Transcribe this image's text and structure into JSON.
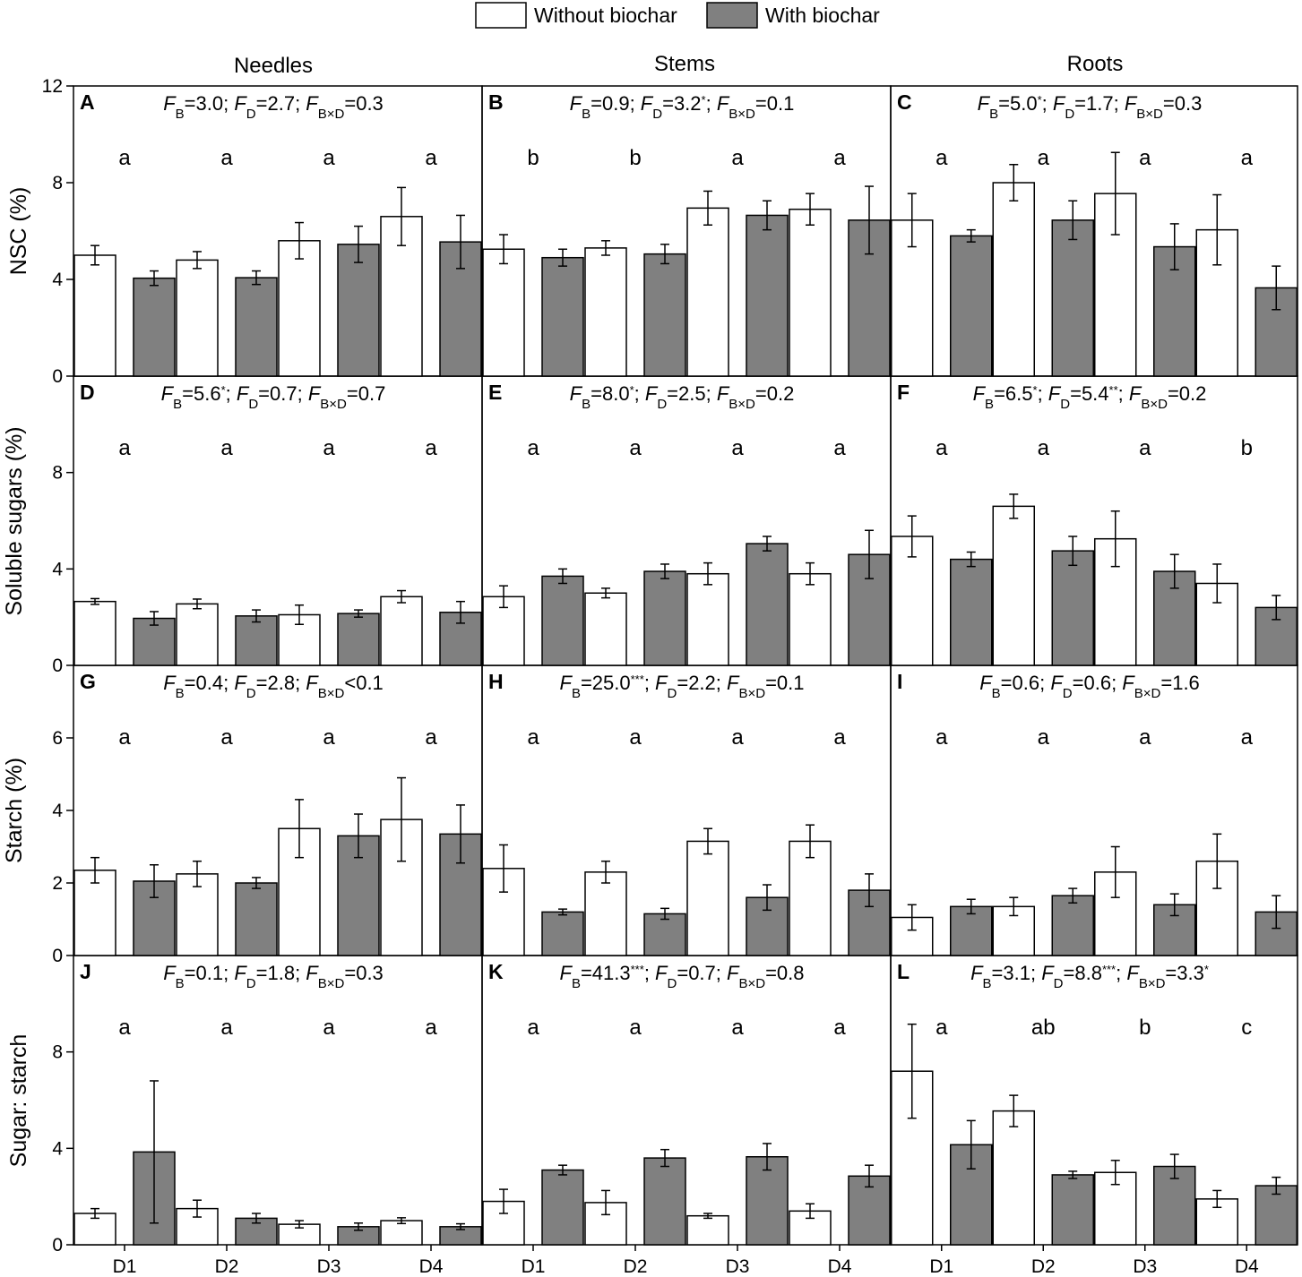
{
  "legend": {
    "items": [
      {
        "label": "Without biochar",
        "color": "#ffffff"
      },
      {
        "label": "With biochar",
        "color": "#808080"
      }
    ]
  },
  "columns": [
    "Needles",
    "Stems",
    "Roots"
  ],
  "row_labels": [
    "NSC (%)",
    "Soluble sugars (%)",
    "Starch (%)",
    "Sugar: starch"
  ],
  "x_categories": [
    "D1",
    "D2",
    "D3",
    "D4"
  ],
  "chart_data": {
    "type": "bar",
    "series": [
      {
        "name": "Without biochar",
        "color": "#ffffff"
      },
      {
        "name": "With biochar",
        "color": "#808080"
      }
    ],
    "categories": [
      "D1",
      "D2",
      "D3",
      "D4"
    ],
    "rows": [
      {
        "ylabel": "NSC (%)",
        "ylim": [
          0,
          12
        ],
        "yticks": [
          "0",
          "4",
          "8",
          "12"
        ],
        "ytick_values": [
          0,
          4,
          8,
          12
        ]
      },
      {
        "ylabel": "Soluble sugars (%)",
        "ylim": [
          0,
          12
        ],
        "yticks": [
          "0",
          "4",
          "8"
        ],
        "ytick_values": [
          0,
          4,
          8
        ]
      },
      {
        "ylabel": "Starch (%)",
        "ylim": [
          0,
          8
        ],
        "yticks": [
          "0",
          "2",
          "4",
          "6"
        ],
        "ytick_values": [
          0,
          2,
          4,
          6
        ]
      },
      {
        "ylabel": "Sugar: starch",
        "ylim": [
          0,
          12
        ],
        "yticks": [
          "0",
          "4",
          "8"
        ],
        "ytick_values": [
          0,
          4,
          8
        ]
      }
    ],
    "panels": [
      {
        "letter": "A",
        "row": 0,
        "col": 0,
        "stats": {
          "fb": "3.0",
          "fb_sig": "",
          "fd": "2.7",
          "fd_sig": "",
          "op": "=",
          "fbd": "0.3",
          "fbd_sig": ""
        },
        "letters": [
          "a",
          "a",
          "a",
          "a"
        ],
        "without": [
          5.0,
          4.8,
          5.6,
          6.6
        ],
        "without_err": [
          0.4,
          0.35,
          0.75,
          1.2
        ],
        "with": [
          4.05,
          4.07,
          5.45,
          5.55
        ],
        "with_err": [
          0.3,
          0.28,
          0.75,
          1.1
        ]
      },
      {
        "letter": "B",
        "row": 0,
        "col": 1,
        "stats": {
          "fb": "0.9",
          "fb_sig": "",
          "fd": "3.2",
          "fd_sig": "*",
          "op": "=",
          "fbd": "0.1",
          "fbd_sig": ""
        },
        "letters": [
          "b",
          "b",
          "a",
          "a"
        ],
        "without": [
          5.25,
          5.3,
          6.95,
          6.9
        ],
        "without_err": [
          0.6,
          0.3,
          0.7,
          0.65
        ],
        "with": [
          4.9,
          5.05,
          6.65,
          6.45
        ],
        "with_err": [
          0.35,
          0.4,
          0.6,
          1.4
        ]
      },
      {
        "letter": "C",
        "row": 0,
        "col": 2,
        "stats": {
          "fb": "5.0",
          "fb_sig": "*",
          "fd": "1.7",
          "fd_sig": "",
          "op": "=",
          "fbd": "0.3",
          "fbd_sig": ""
        },
        "letters": [
          "a",
          "a",
          "a",
          "a"
        ],
        "without": [
          6.45,
          8.0,
          7.55,
          6.05
        ],
        "without_err": [
          1.1,
          0.75,
          1.7,
          1.45
        ],
        "with": [
          5.8,
          6.45,
          5.35,
          3.65
        ],
        "with_err": [
          0.25,
          0.8,
          0.95,
          0.9
        ]
      },
      {
        "letter": "D",
        "row": 1,
        "col": 0,
        "stats": {
          "fb": "5.6",
          "fb_sig": "*",
          "fd": "0.7",
          "fd_sig": "",
          "op": "=",
          "fbd": "0.7",
          "fbd_sig": ""
        },
        "letters": [
          "a",
          "a",
          "a",
          "a"
        ],
        "without": [
          2.65,
          2.55,
          2.1,
          2.85
        ],
        "without_err": [
          0.12,
          0.2,
          0.4,
          0.25
        ],
        "with": [
          1.95,
          2.05,
          2.15,
          2.2
        ],
        "with_err": [
          0.28,
          0.25,
          0.15,
          0.45
        ]
      },
      {
        "letter": "E",
        "row": 1,
        "col": 1,
        "stats": {
          "fb": "8.0",
          "fb_sig": "*",
          "fd": "2.5",
          "fd_sig": "",
          "op": "=",
          "fbd": "0.2",
          "fbd_sig": ""
        },
        "letters": [
          "a",
          "a",
          "a",
          "a"
        ],
        "without": [
          2.85,
          3.0,
          3.8,
          3.8
        ],
        "without_err": [
          0.45,
          0.2,
          0.45,
          0.45
        ],
        "with": [
          3.7,
          3.9,
          5.05,
          4.6
        ],
        "with_err": [
          0.3,
          0.3,
          0.3,
          1.0
        ]
      },
      {
        "letter": "F",
        "row": 1,
        "col": 2,
        "stats": {
          "fb": "6.5",
          "fb_sig": "*",
          "fd": "5.4",
          "fd_sig": "**",
          "op": "=",
          "fbd": "0.2",
          "fbd_sig": ""
        },
        "letters": [
          "a",
          "a",
          "a",
          "b"
        ],
        "without": [
          5.35,
          6.6,
          5.25,
          3.4
        ],
        "without_err": [
          0.85,
          0.5,
          1.15,
          0.8
        ],
        "with": [
          4.4,
          4.75,
          3.9,
          2.4
        ],
        "with_err": [
          0.3,
          0.6,
          0.7,
          0.5
        ]
      },
      {
        "letter": "G",
        "row": 2,
        "col": 0,
        "stats": {
          "fb": "0.4",
          "fb_sig": "",
          "fd": "2.8",
          "fd_sig": "",
          "op": "<",
          "fbd": "0.1",
          "fbd_sig": ""
        },
        "letters": [
          "a",
          "a",
          "a",
          "a"
        ],
        "without": [
          2.35,
          2.25,
          3.5,
          3.75
        ],
        "without_err": [
          0.35,
          0.35,
          0.8,
          1.15
        ],
        "with": [
          2.05,
          2.0,
          3.3,
          3.35
        ],
        "with_err": [
          0.45,
          0.15,
          0.6,
          0.8
        ]
      },
      {
        "letter": "H",
        "row": 2,
        "col": 1,
        "stats": {
          "fb": "25.0",
          "fb_sig": "***",
          "fd": "2.2",
          "fd_sig": "",
          "op": "=",
          "fbd": "0.1",
          "fbd_sig": ""
        },
        "letters": [
          "a",
          "a",
          "a",
          "a"
        ],
        "without": [
          2.4,
          2.3,
          3.15,
          3.15
        ],
        "without_err": [
          0.65,
          0.3,
          0.35,
          0.45
        ],
        "with": [
          1.2,
          1.15,
          1.6,
          1.8
        ],
        "with_err": [
          0.08,
          0.15,
          0.35,
          0.45
        ]
      },
      {
        "letter": "I",
        "row": 2,
        "col": 2,
        "stats": {
          "fb": "0.6",
          "fb_sig": "",
          "fd": "0.6",
          "fd_sig": "",
          "op": "=",
          "fbd": "1.6",
          "fbd_sig": ""
        },
        "letters": [
          "a",
          "a",
          "a",
          "a"
        ],
        "without": [
          1.05,
          1.35,
          2.3,
          2.6
        ],
        "without_err": [
          0.35,
          0.25,
          0.7,
          0.75
        ],
        "with": [
          1.35,
          1.65,
          1.4,
          1.2
        ],
        "with_err": [
          0.2,
          0.2,
          0.3,
          0.45
        ]
      },
      {
        "letter": "J",
        "row": 3,
        "col": 0,
        "stats": {
          "fb": "0.1",
          "fb_sig": "",
          "fd": "1.8",
          "fd_sig": "",
          "op": "=",
          "fbd": "0.3",
          "fbd_sig": ""
        },
        "letters": [
          "a",
          "a",
          "a",
          "a"
        ],
        "without": [
          1.3,
          1.5,
          0.85,
          1.0
        ],
        "without_err": [
          0.2,
          0.35,
          0.15,
          0.12
        ],
        "with": [
          3.85,
          1.1,
          0.75,
          0.75
        ],
        "with_err": [
          2.95,
          0.2,
          0.15,
          0.12
        ]
      },
      {
        "letter": "K",
        "row": 3,
        "col": 1,
        "stats": {
          "fb": "41.3",
          "fb_sig": "***",
          "fd": "0.7",
          "fd_sig": "",
          "op": "=",
          "fbd": "0.8",
          "fbd_sig": ""
        },
        "letters": [
          "a",
          "a",
          "a",
          "a"
        ],
        "without": [
          1.8,
          1.75,
          1.2,
          1.4
        ],
        "without_err": [
          0.5,
          0.5,
          0.1,
          0.3
        ],
        "with": [
          3.1,
          3.6,
          3.65,
          2.85
        ],
        "with_err": [
          0.2,
          0.35,
          0.55,
          0.45
        ]
      },
      {
        "letter": "L",
        "row": 3,
        "col": 2,
        "stats": {
          "fb": "3.1",
          "fb_sig": "",
          "fd": "8.8",
          "fd_sig": "***",
          "op": "=",
          "fbd": "3.3",
          "fbd_sig": "*"
        },
        "letters": [
          "a",
          "ab",
          "b",
          "c"
        ],
        "without": [
          7.2,
          5.55,
          3.0,
          1.9
        ],
        "without_err": [
          1.95,
          0.65,
          0.5,
          0.35
        ],
        "with": [
          4.15,
          2.9,
          3.25,
          2.45
        ],
        "with_err": [
          1.0,
          0.15,
          0.5,
          0.35
        ]
      }
    ]
  }
}
